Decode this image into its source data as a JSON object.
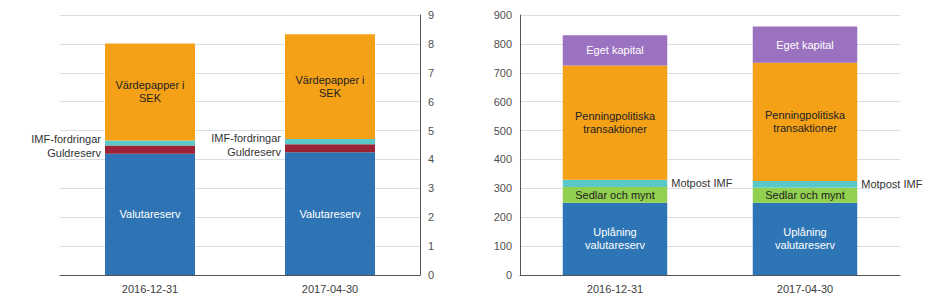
{
  "chart_data": [
    {
      "type": "bar",
      "stacked": true,
      "grid": true,
      "categories": [
        "2016-12-31",
        "2017-04-30"
      ],
      "series": [
        {
          "name": "Valutareserv",
          "color": "#2E74B5",
          "values": [
            4.2,
            4.25
          ]
        },
        {
          "name": "Guldreserv",
          "color": "#9B2335",
          "values": [
            0.28,
            0.28
          ]
        },
        {
          "name": "IMF-fordringar",
          "color": "#5BC8C8",
          "values": [
            0.18,
            0.18
          ]
        },
        {
          "name": "Värdepapper i\nSEK",
          "color": "#F4A118",
          "values": [
            3.35,
            3.62
          ]
        }
      ],
      "ylim": [
        0,
        9
      ],
      "yticks": [
        0,
        1,
        2,
        3,
        4,
        5,
        6,
        7,
        8,
        9
      ]
    },
    {
      "type": "bar",
      "stacked": true,
      "grid": true,
      "categories": [
        "2016-12-31",
        "2017-04-30"
      ],
      "series": [
        {
          "name": "Uplåning\nvalutareserv",
          "color": "#2E75B6",
          "values": [
            250,
            250
          ]
        },
        {
          "name": "Sedlar och mynt",
          "color": "#92D050",
          "values": [
            55,
            52
          ]
        },
        {
          "name": "Motpost IMF",
          "color": "#5BC8C8",
          "values": [
            25,
            23
          ]
        },
        {
          "name": "Penningpolitiska\ntransaktioner",
          "color": "#F4A118",
          "values": [
            395,
            410
          ]
        },
        {
          "name": "Eget kapital",
          "color": "#9B72C0",
          "values": [
            105,
            125
          ]
        }
      ],
      "ylim": [
        0,
        900
      ],
      "yticks": [
        0,
        100,
        200,
        300,
        400,
        500,
        600,
        700,
        800,
        900
      ]
    }
  ]
}
